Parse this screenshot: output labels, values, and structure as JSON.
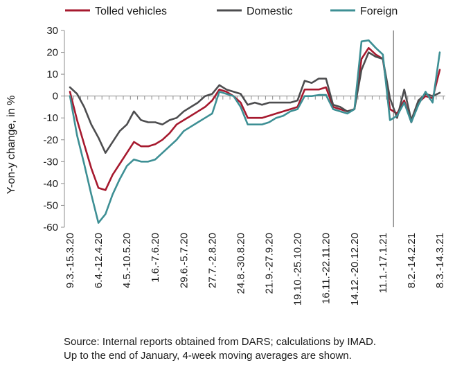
{
  "chart_data": {
    "type": "line",
    "ylabel": "Y-on-y change, in %",
    "ylim": [
      -60,
      30
    ],
    "yticks": [
      30,
      20,
      10,
      0,
      -10,
      -20,
      -30,
      -40,
      -50,
      -60
    ],
    "tick_labels": [
      "9.3.-15.3.20",
      "6.4.-12.4.20",
      "4.5.-10.5.20",
      "1.6.-7.6.20",
      "29.6.-5.7.20",
      "27.7.-2.8.20",
      "24.8.-30.8.20",
      "21.9.-27.9.20",
      "19.10.-25.10.20",
      "16.11.-22.11.20",
      "14.12.-20.12.20",
      "11.1.-17.1.21",
      "8.2.-14.2.21",
      "8.3.-14.3.21"
    ],
    "tick_positions": [
      0,
      4,
      8,
      12,
      16,
      20,
      24,
      28,
      32,
      36,
      40,
      44,
      48,
      52
    ],
    "n_points": 53,
    "vline_after_index": 46,
    "grid": false,
    "legend_position": "top",
    "series": [
      {
        "name": "Tolled vehicles",
        "color": "#a6192e",
        "values": [
          2,
          -11,
          -22,
          -33,
          -42,
          -43,
          -36,
          -31,
          -26,
          -21,
          -23,
          -23,
          -22,
          -20,
          -17,
          -13,
          -11,
          -9,
          -7,
          -5,
          -2,
          3,
          2,
          0,
          -3,
          -10,
          -10,
          -10,
          -9,
          -8,
          -7,
          -6,
          -5,
          3,
          3,
          3,
          4,
          -5,
          -6,
          -7,
          -6,
          17,
          22,
          19,
          17,
          -6,
          -8,
          -2,
          -12,
          -3,
          0,
          -1,
          12
        ]
      },
      {
        "name": "Domestic",
        "color": "#4d4d4f",
        "values": [
          4,
          1,
          -5,
          -13,
          -19,
          -26,
          -21,
          -16,
          -13,
          -7,
          -11,
          -12,
          -12,
          -13,
          -11,
          -10,
          -7,
          -5,
          -3,
          0,
          1,
          5,
          3,
          2,
          1,
          -4,
          -3,
          -4,
          -3,
          -3,
          -3,
          -3,
          -2,
          7,
          6,
          8,
          8,
          -4,
          -5,
          -7,
          -6,
          12,
          20,
          18,
          17,
          -1,
          -10,
          3,
          -11,
          -2,
          1,
          0,
          1.5
        ]
      },
      {
        "name": "Foreign",
        "color": "#3d8f94",
        "values": [
          0,
          -18,
          -31,
          -45,
          -58,
          -54,
          -45,
          -38,
          -32,
          -29,
          -30,
          -30,
          -29,
          -26,
          -23,
          -20,
          -16,
          -14,
          -12,
          -10,
          -8,
          2,
          1,
          0,
          -5,
          -13,
          -13,
          -13,
          -12,
          -10,
          -9,
          -7,
          -6,
          0,
          0,
          0.5,
          0.5,
          -6,
          -7,
          -8,
          -6,
          25,
          25.5,
          22,
          19,
          -11,
          -9,
          -3,
          -12,
          -4,
          2,
          -3,
          20
        ]
      }
    ]
  },
  "footer": {
    "source_line1": "Source: Internal reports obtained from DARS; calculations by IMAD.",
    "source_line2": "Up to the end of January, 4-week moving averages are shown."
  }
}
